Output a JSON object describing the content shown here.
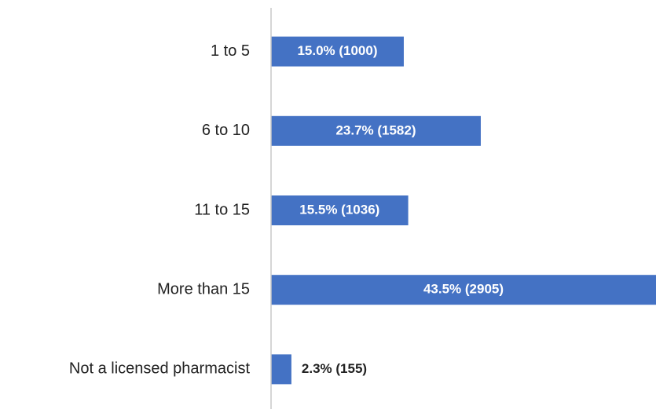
{
  "chart_data": {
    "type": "bar",
    "orientation": "horizontal",
    "color": "#4472c4",
    "categories": [
      "1 to 5",
      "6 to 10",
      "11 to 15",
      "More than 15",
      "Not a licensed pharmacist"
    ],
    "values": [
      15.0,
      23.7,
      15.5,
      43.5,
      2.3
    ],
    "value_labels": [
      "15.0% (1000)",
      "23.7% (1582)",
      "15.5% (1036)",
      "43.5% (2905)",
      "2.3% (155)"
    ]
  }
}
